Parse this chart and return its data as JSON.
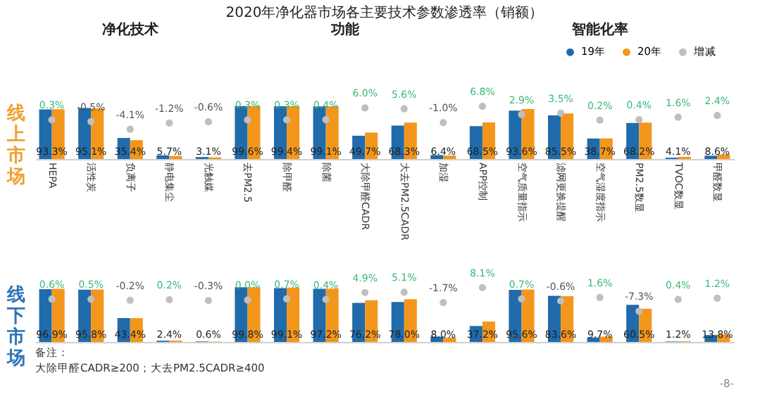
{
  "chart_data": [
    {
      "type": "bar",
      "title": "2020年净化器市场各主要技术参数渗透率（销额）",
      "ylabel": "线上市场",
      "annotations": [
        "净化技术",
        "功能",
        "智能化率"
      ],
      "legend": "top right",
      "tick_labels": "x",
      "marker": "circle",
      "categories": [
        "HEPA",
        "活性炭",
        "负离子",
        "静电集尘",
        "光触媒",
        "去PM2.5",
        "除甲醛",
        "除菌",
        "大除甲醛CADR",
        "大去PM2.5CADR",
        "加湿",
        "APP控制",
        "空气质量指示",
        "滤网更换提醒",
        "空气湿度指示",
        "PM2.5数显",
        "TVOC数显",
        "甲醛数显"
      ],
      "series": [
        {
          "name": "19年",
          "color": "#1f6bab",
          "values": [
            93.0,
            95.6,
            39.5,
            6.9,
            3.7,
            99.3,
            99.1,
            98.7,
            43.7,
            62.7,
            7.4,
            61.7,
            90.7,
            82.0,
            38.5,
            67.8,
            2.5,
            6.2
          ]
        },
        {
          "name": "20年",
          "color": "#f3961c",
          "values": [
            93.3,
            95.1,
            35.4,
            5.7,
            3.1,
            99.6,
            99.4,
            99.1,
            49.7,
            68.3,
            6.4,
            68.5,
            93.6,
            85.5,
            38.7,
            68.2,
            4.1,
            8.6
          ],
          "value_labels": [
            "93.3%",
            "95.1%",
            "35.4%",
            "5.7%",
            "3.1%",
            "99.6%",
            "99.4%",
            "99.1%",
            "49.7%",
            "68.3%",
            "6.4%",
            "68.5%",
            "93.6%",
            "85.5%",
            "38.7%",
            "68.2%",
            "4.1%",
            "8.6%"
          ]
        },
        {
          "name": "增减",
          "type": "scatter",
          "axis": "y2",
          "color": "#bfbfbf",
          "values": [
            0.3,
            -0.5,
            -4.1,
            -1.2,
            -0.6,
            0.3,
            0.3,
            0.4,
            6.0,
            5.6,
            -1.0,
            6.8,
            2.9,
            3.5,
            0.2,
            0.4,
            1.6,
            2.4
          ],
          "value_labels": [
            "0.3%",
            "-0.5%",
            "-4.1%",
            "-1.2%",
            "-0.6%",
            "0.3%",
            "0.3%",
            "0.4%",
            "6.0%",
            "5.6%",
            "-1.0%",
            "6.8%",
            "2.9%",
            "3.5%",
            "0.2%",
            "0.4%",
            "1.6%",
            "2.4%"
          ]
        }
      ]
    },
    {
      "type": "bar",
      "ylabel": "线下市场",
      "annotations": [
        "备注：",
        "大除甲醛CADR≥200；大去PM2.5CADR≥400",
        "-8-"
      ],
      "tick_labels": false,
      "marker": "circle",
      "series": [
        {
          "name": "19年",
          "color": "#1f6bab",
          "values": [
            96.3,
            95.3,
            43.6,
            2.2,
            0.9,
            99.8,
            98.4,
            96.8,
            71.3,
            72.9,
            9.7,
            29.1,
            94.9,
            84.2,
            8.1,
            67.8,
            0.8,
            12.6
          ]
        },
        {
          "name": "20年",
          "color": "#f3961c",
          "values": [
            96.9,
            95.8,
            43.4,
            2.4,
            0.6,
            99.8,
            99.1,
            97.2,
            76.2,
            78.0,
            8.0,
            37.2,
            95.6,
            83.6,
            9.7,
            60.5,
            1.2,
            13.8
          ],
          "value_labels": [
            "96.9%",
            "95.8%",
            "43.4%",
            "2.4%",
            "0.6%",
            "99.8%",
            "99.1%",
            "97.2%",
            "76.2%",
            "78.0%",
            "8.0%",
            "37.2%",
            "95.6%",
            "83.6%",
            "9.7%",
            "60.5%",
            "1.2%",
            "13.8%"
          ]
        },
        {
          "name": "增减",
          "type": "scatter",
          "axis": "y2",
          "color": "#bfbfbf",
          "values": [
            0.6,
            0.5,
            -0.2,
            0.2,
            -0.3,
            0.0,
            0.7,
            0.4,
            4.9,
            5.1,
            -1.7,
            8.1,
            0.7,
            -0.6,
            1.6,
            -7.3,
            0.4,
            1.2
          ],
          "value_labels": [
            "0.6%",
            "0.5%",
            "-0.2%",
            "0.2%",
            "-0.3%",
            "0.0%",
            "0.7%",
            "0.4%",
            "4.9%",
            "5.1%",
            "-1.7%",
            "8.1%",
            "0.7%",
            "-0.6%",
            "1.6%",
            "-7.3%",
            "0.4%",
            "1.2%"
          ]
        }
      ]
    }
  ]
}
